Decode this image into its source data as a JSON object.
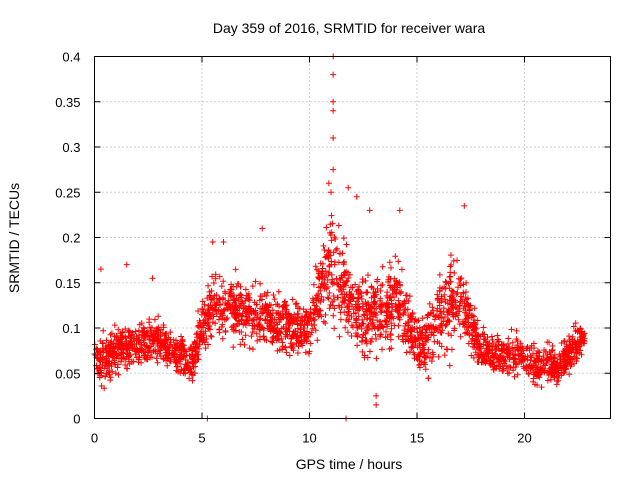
{
  "chart_data": {
    "type": "scatter",
    "title": "Day 359 of 2016, SRMTID for receiver wara",
    "xlabel": "GPS time / hours",
    "ylabel": "SRMTID / TECUs",
    "xlim": [
      0,
      24
    ],
    "ylim": [
      0,
      0.4
    ],
    "xticks": [
      0,
      5,
      10,
      15,
      20
    ],
    "xtick_labels": [
      "0",
      "5",
      "10",
      "15",
      "20"
    ],
    "yticks": [
      0,
      0.05,
      0.1,
      0.15,
      0.2,
      0.25,
      0.3,
      0.35,
      0.4
    ],
    "ytick_labels": [
      "0",
      "0.05",
      "0.1",
      "0.15",
      "0.2",
      "0.25",
      "0.3",
      "0.35",
      "0.4"
    ],
    "grid": true,
    "marker": "+",
    "color": "#ff0000",
    "envelope_x": [
      0,
      0.5,
      1,
      1.5,
      2,
      2.5,
      3,
      3.5,
      4,
      4.5,
      5,
      5.5,
      6,
      6.5,
      7,
      7.5,
      8,
      8.5,
      9,
      9.5,
      10,
      10.5,
      11,
      11.5,
      12,
      12.5,
      13,
      13.5,
      14,
      14.5,
      15,
      15.5,
      16,
      16.5,
      17,
      17.5,
      18,
      18.5,
      19,
      19.5,
      20,
      20.5,
      21,
      21.5,
      22,
      22.5,
      22.8
    ],
    "envelope_low": [
      0.03,
      0.03,
      0.04,
      0.05,
      0.05,
      0.05,
      0.05,
      0.04,
      0.04,
      0.03,
      0.06,
      0.08,
      0.08,
      0.07,
      0.07,
      0.06,
      0.06,
      0.06,
      0.06,
      0.05,
      0.06,
      0.08,
      0.09,
      0.08,
      0.06,
      0.05,
      0.06,
      0.06,
      0.07,
      0.06,
      0.04,
      0.04,
      0.05,
      0.05,
      0.07,
      0.06,
      0.05,
      0.04,
      0.04,
      0.04,
      0.04,
      0.03,
      0.03,
      0.03,
      0.04,
      0.05,
      0.06
    ],
    "envelope_high": [
      0.1,
      0.1,
      0.11,
      0.11,
      0.11,
      0.12,
      0.12,
      0.11,
      0.1,
      0.09,
      0.14,
      0.17,
      0.17,
      0.17,
      0.16,
      0.16,
      0.16,
      0.15,
      0.15,
      0.15,
      0.15,
      0.2,
      0.24,
      0.22,
      0.19,
      0.17,
      0.17,
      0.18,
      0.2,
      0.16,
      0.12,
      0.13,
      0.17,
      0.19,
      0.2,
      0.14,
      0.11,
      0.1,
      0.1,
      0.1,
      0.1,
      0.09,
      0.09,
      0.08,
      0.1,
      0.12,
      0.12
    ],
    "outliers": [
      {
        "x": 11.1,
        "y": 0.4
      },
      {
        "x": 11.1,
        "y": 0.38
      },
      {
        "x": 11.1,
        "y": 0.35
      },
      {
        "x": 11.1,
        "y": 0.34
      },
      {
        "x": 11.1,
        "y": 0.31
      },
      {
        "x": 11.1,
        "y": 0.275
      },
      {
        "x": 10.9,
        "y": 0.26
      },
      {
        "x": 11.0,
        "y": 0.25
      },
      {
        "x": 11.8,
        "y": 0.255
      },
      {
        "x": 12.2,
        "y": 0.245
      },
      {
        "x": 12.8,
        "y": 0.23
      },
      {
        "x": 14.2,
        "y": 0.23
      },
      {
        "x": 17.2,
        "y": 0.235
      },
      {
        "x": 7.8,
        "y": 0.21
      },
      {
        "x": 6.0,
        "y": 0.195
      },
      {
        "x": 5.5,
        "y": 0.195
      },
      {
        "x": 0.3,
        "y": 0.165
      },
      {
        "x": 1.5,
        "y": 0.17
      },
      {
        "x": 2.7,
        "y": 0.155
      },
      {
        "x": 13.1,
        "y": 0.015
      },
      {
        "x": 13.1,
        "y": 0.025
      },
      {
        "x": 5.25,
        "y": 0.0
      },
      {
        "x": 11.7,
        "y": 0.0
      }
    ]
  }
}
